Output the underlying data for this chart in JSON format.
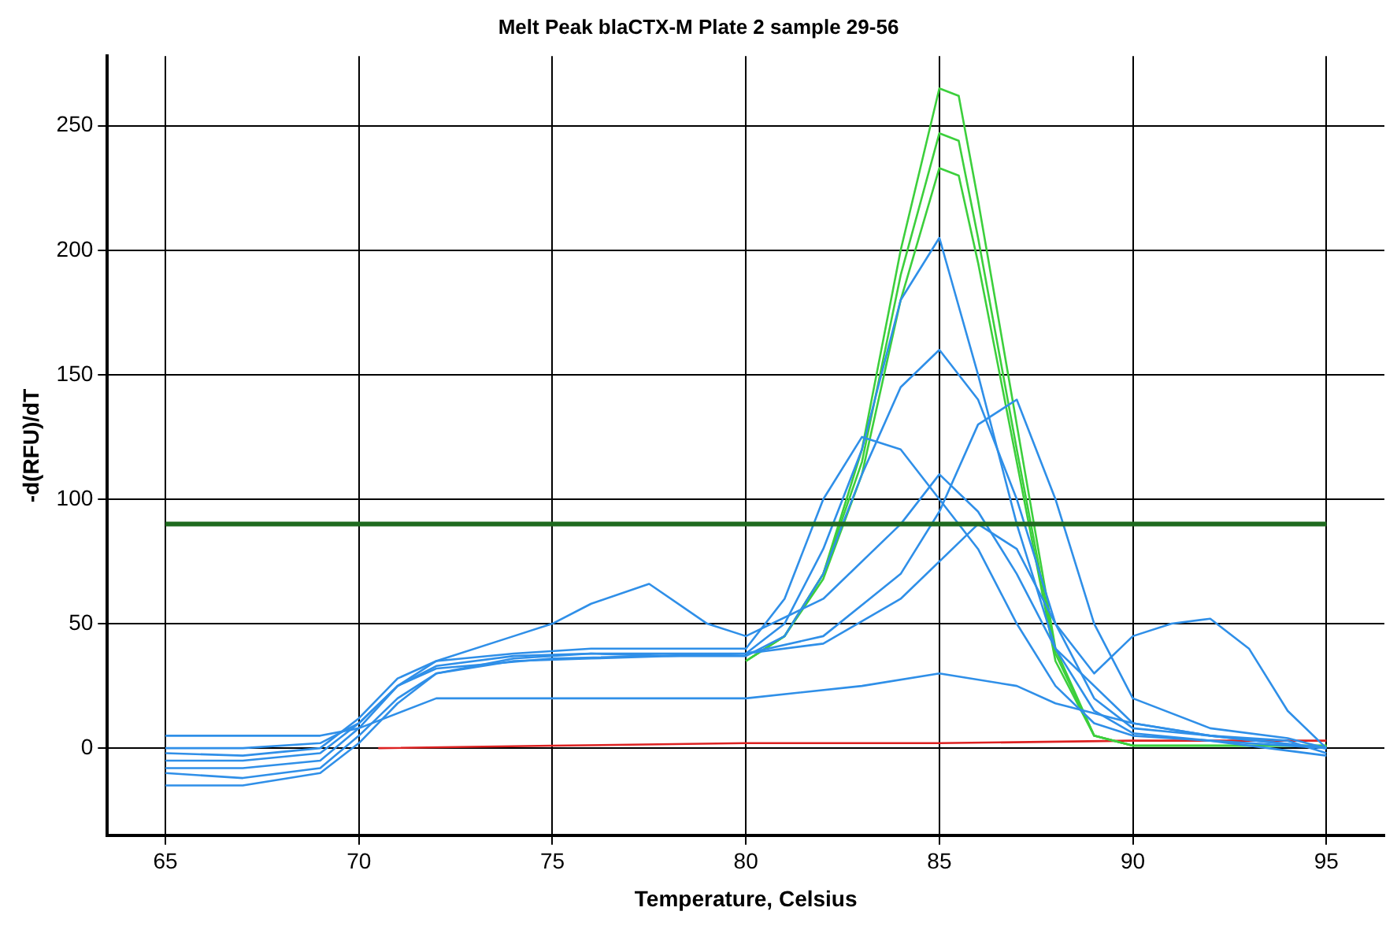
{
  "chart_data": {
    "type": "line",
    "title": "Melt Peak blaCTX-M Plate 2 sample 29-56",
    "xlabel": "Temperature, Celsius",
    "ylabel": "-d(RFU)/dT",
    "xlim": [
      63.5,
      96.5
    ],
    "xticks": [
      65,
      70,
      75,
      80,
      85,
      90,
      95
    ],
    "ylim": [
      -35,
      278
    ],
    "yticks": [
      0,
      50,
      100,
      150,
      200,
      250
    ],
    "grid": true,
    "marker": "none",
    "line_style": "solid",
    "ref_lines": [
      {
        "axis": "y",
        "value": 90,
        "color": "#1f6b1f"
      }
    ],
    "series": [
      {
        "color": "#2f8fe8",
        "x": [
          65,
          67,
          69,
          70,
          71,
          72,
          74,
          76,
          78,
          80,
          81,
          82,
          83,
          84,
          85,
          86,
          87,
          88,
          89,
          90,
          92,
          94,
          95
        ],
        "values": [
          -5,
          -5,
          -2,
          10,
          25,
          33,
          37,
          38,
          37,
          37,
          45,
          70,
          110,
          145,
          160,
          140,
          100,
          50,
          20,
          8,
          5,
          3,
          -2
        ]
      },
      {
        "color": "#2f8fe8",
        "x": [
          65,
          67,
          69,
          70,
          71,
          72,
          74,
          76,
          78,
          80,
          82,
          84,
          85,
          86,
          87,
          88,
          89,
          90,
          92,
          94,
          95
        ],
        "values": [
          -10,
          -12,
          -8,
          5,
          20,
          30,
          35,
          36,
          37,
          38,
          45,
          70,
          95,
          130,
          140,
          100,
          50,
          20,
          8,
          4,
          0
        ]
      },
      {
        "color": "#2f8fe8",
        "x": [
          65,
          67,
          69,
          70,
          71,
          72,
          74,
          76,
          78,
          80,
          81,
          82,
          83,
          84,
          85,
          86,
          87,
          88,
          89,
          90,
          92,
          95
        ],
        "values": [
          -2,
          -3,
          0,
          12,
          28,
          35,
          38,
          40,
          40,
          40,
          60,
          100,
          125,
          120,
          100,
          80,
          50,
          25,
          10,
          5,
          3,
          0
        ]
      },
      {
        "color": "#2f8fe8",
        "x": [
          65,
          67,
          69,
          70,
          71,
          72,
          74,
          76,
          78,
          80,
          81,
          82,
          83,
          84,
          85,
          86,
          87,
          88,
          89,
          90,
          92,
          95
        ],
        "values": [
          -15,
          -15,
          -10,
          2,
          18,
          30,
          36,
          38,
          38,
          38,
          50,
          80,
          120,
          180,
          205,
          150,
          90,
          40,
          15,
          6,
          3,
          -3
        ]
      },
      {
        "color": "#2f8fe8",
        "x": [
          65,
          67,
          69,
          70,
          72,
          75,
          80,
          83,
          85,
          87,
          88,
          90,
          92,
          95
        ],
        "values": [
          5,
          5,
          5,
          8,
          20,
          20,
          20,
          25,
          30,
          25,
          18,
          10,
          5,
          0
        ]
      },
      {
        "color": "#2f8fe8",
        "x": [
          65,
          67,
          69,
          70,
          71,
          72,
          75,
          80,
          82,
          84,
          86,
          87,
          88,
          89,
          90,
          91,
          92,
          93,
          94,
          95
        ],
        "values": [
          0,
          0,
          2,
          10,
          25,
          32,
          36,
          38,
          42,
          60,
          90,
          80,
          50,
          30,
          45,
          50,
          52,
          40,
          15,
          0
        ]
      },
      {
        "color": "#2f8fe8",
        "x": [
          65,
          67,
          69,
          70,
          71,
          72,
          74,
          75,
          76,
          77.5,
          79,
          80,
          82,
          84,
          85,
          86,
          87,
          88,
          90,
          92,
          95
        ],
        "values": [
          -8,
          -8,
          -5,
          8,
          25,
          35,
          45,
          50,
          58,
          66,
          50,
          45,
          60,
          90,
          110,
          95,
          70,
          40,
          10,
          5,
          0
        ]
      },
      {
        "color": "#3ccf3c",
        "x": [
          80,
          81,
          82,
          83,
          84,
          85,
          85.5,
          86,
          87,
          88,
          89,
          90,
          93,
          95
        ],
        "values": [
          35,
          45,
          70,
          120,
          200,
          265,
          262,
          220,
          130,
          40,
          5,
          1,
          1,
          1
        ]
      },
      {
        "color": "#3ccf3c",
        "x": [
          80,
          81,
          82,
          83,
          84,
          85,
          85.5,
          86,
          87,
          88,
          89,
          90,
          93,
          95
        ],
        "values": [
          35,
          45,
          70,
          115,
          190,
          247,
          244,
          205,
          120,
          38,
          5,
          1,
          1,
          1
        ]
      },
      {
        "color": "#3ccf3c",
        "x": [
          80,
          81,
          82,
          83,
          84,
          85,
          85.5,
          86,
          87,
          88,
          89,
          90,
          93,
          95
        ],
        "values": [
          35,
          45,
          68,
          110,
          180,
          233,
          230,
          195,
          115,
          35,
          5,
          1,
          1,
          1
        ]
      },
      {
        "color": "#dd2222",
        "x": [
          70.5,
          75,
          80,
          85,
          90,
          95
        ],
        "values": [
          0,
          1,
          2,
          2,
          3,
          3
        ]
      }
    ]
  }
}
